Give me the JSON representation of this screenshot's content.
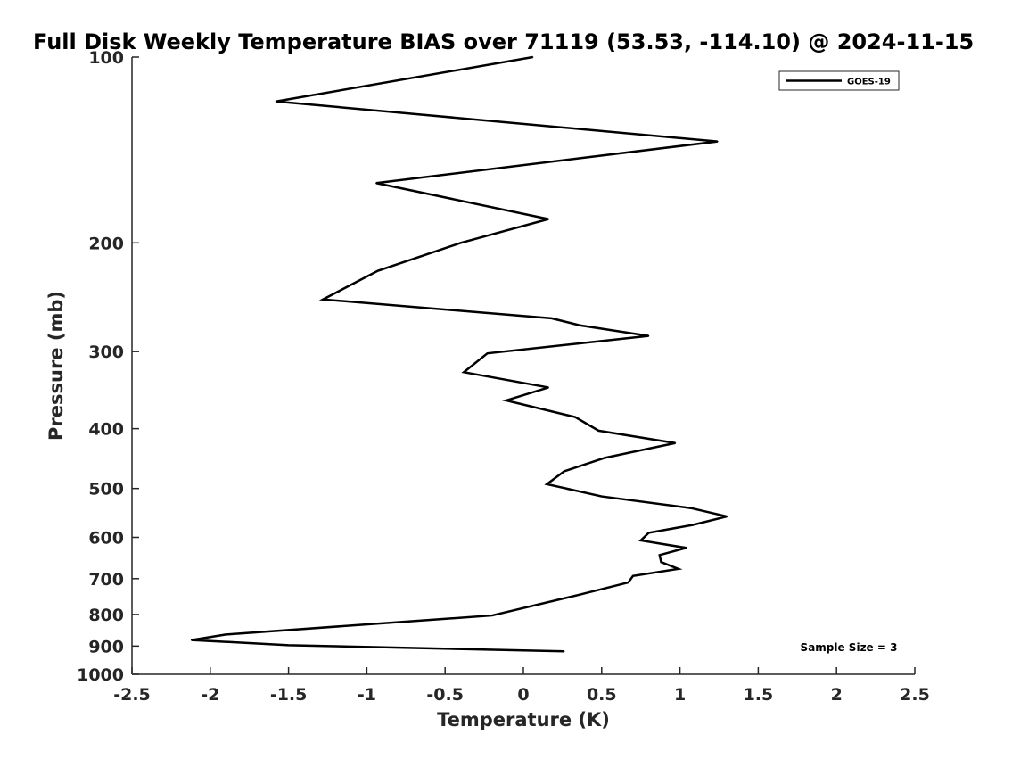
{
  "chart_data": {
    "type": "line",
    "title": "Full Disk Weekly Temperature BIAS over 71119 (53.53, -114.10) @ 2024-11-15",
    "xlabel": "Temperature (K)",
    "ylabel": "Pressure (mb)",
    "xlim": [
      -2.5,
      2.5
    ],
    "ylim": [
      100,
      1000
    ],
    "y_scale": "log",
    "y_reversed": true,
    "x_ticks": [
      "-2.5",
      "-2",
      "-1.5",
      "-1",
      "-0.5",
      "0",
      "0.5",
      "1",
      "1.5",
      "2",
      "2.5"
    ],
    "y_ticks": [
      "100",
      "200",
      "300",
      "400",
      "500",
      "600",
      "700",
      "800",
      "900",
      "1000"
    ],
    "grid": false,
    "legend_position": "top-right",
    "annotation": "Sample Size = 3",
    "series": [
      {
        "name": "GOES-19",
        "color": "#000000",
        "points": [
          [
            0.06,
            100
          ],
          [
            -1.58,
            118
          ],
          [
            1.24,
            137
          ],
          [
            -0.94,
            160
          ],
          [
            0.16,
            183
          ],
          [
            -0.4,
            200
          ],
          [
            -0.93,
            222
          ],
          [
            -1.28,
            247
          ],
          [
            0.18,
            265
          ],
          [
            0.36,
            272
          ],
          [
            0.8,
            283
          ],
          [
            -0.23,
            302
          ],
          [
            -0.38,
            324
          ],
          [
            0.16,
            343
          ],
          [
            -0.11,
            360
          ],
          [
            0.33,
            383
          ],
          [
            0.48,
            403
          ],
          [
            0.97,
            422
          ],
          [
            0.52,
            446
          ],
          [
            0.26,
            469
          ],
          [
            0.15,
            492
          ],
          [
            0.5,
            515
          ],
          [
            1.07,
            538
          ],
          [
            1.3,
            555
          ],
          [
            1.08,
            573
          ],
          [
            0.8,
            590
          ],
          [
            0.75,
            607
          ],
          [
            1.04,
            624
          ],
          [
            0.87,
            641
          ],
          [
            0.88,
            658
          ],
          [
            0.99,
            675
          ],
          [
            0.7,
            693
          ],
          [
            0.67,
            710
          ],
          [
            0.36,
            743
          ],
          [
            -0.2,
            803
          ],
          [
            -1.9,
            862
          ],
          [
            -2.12,
            880
          ],
          [
            -1.5,
            897
          ],
          [
            0.26,
            918
          ]
        ]
      }
    ]
  }
}
